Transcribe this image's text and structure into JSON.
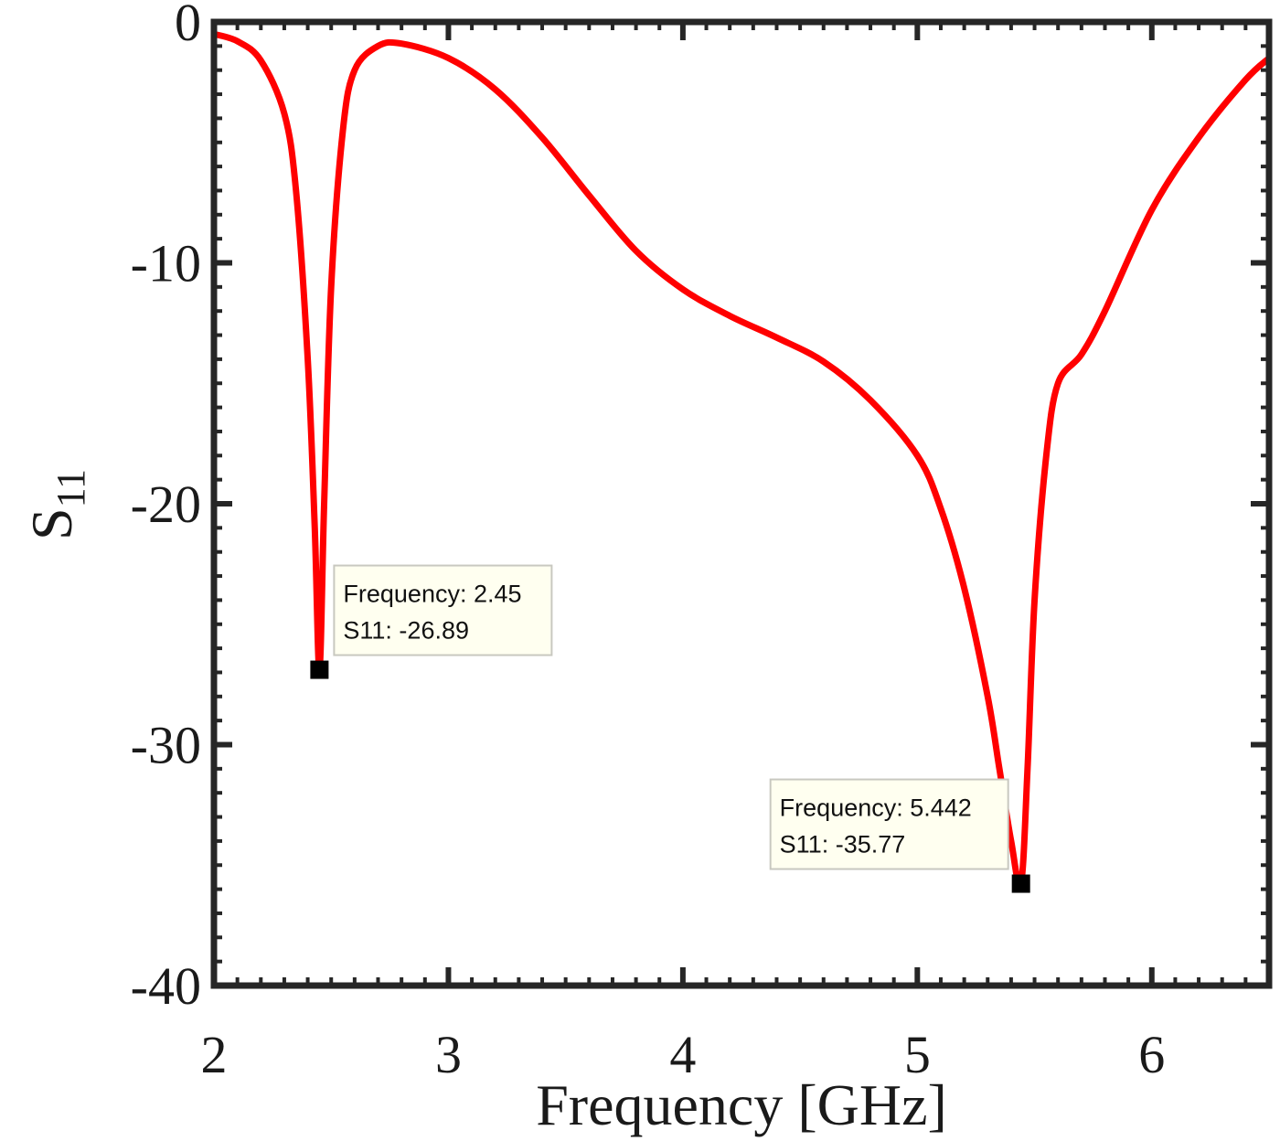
{
  "chart_data": {
    "type": "line",
    "xlabel": "Frequency [GHz]",
    "ylabel": "S",
    "ylabel_sub": "11",
    "xlim": [
      2,
      6.5
    ],
    "ylim": [
      -40,
      0
    ],
    "xticks": [
      2,
      3,
      4,
      5,
      6
    ],
    "yticks": [
      0,
      -10,
      -20,
      -30,
      -40
    ],
    "xtick_labels": [
      "2",
      "3",
      "4",
      "5",
      "6"
    ],
    "ytick_labels": [
      "0",
      "-10",
      "-20",
      "-30",
      "-40"
    ],
    "grid": false,
    "series": [
      {
        "name": "S11",
        "color": "#ff0000",
        "x": [
          2.0,
          2.1,
          2.2,
          2.3,
          2.35,
          2.4,
          2.43,
          2.45,
          2.47,
          2.5,
          2.55,
          2.6,
          2.7,
          2.8,
          3.0,
          3.2,
          3.4,
          3.6,
          3.8,
          4.0,
          4.2,
          4.4,
          4.6,
          4.8,
          5.0,
          5.1,
          5.2,
          5.3,
          5.35,
          5.4,
          5.442,
          5.47,
          5.5,
          5.55,
          5.6,
          5.7,
          5.8,
          6.0,
          6.2,
          6.4,
          6.5
        ],
        "y": [
          -0.5,
          -0.8,
          -1.6,
          -3.8,
          -7.0,
          -14.0,
          -21.0,
          -26.89,
          -20.0,
          -11.0,
          -4.5,
          -2.0,
          -1.0,
          -0.9,
          -1.5,
          -2.8,
          -4.8,
          -7.2,
          -9.5,
          -11.1,
          -12.2,
          -13.1,
          -14.1,
          -15.7,
          -18.0,
          -20.2,
          -23.5,
          -28.0,
          -31.0,
          -34.0,
          -35.77,
          -31.0,
          -24.0,
          -18.0,
          -15.0,
          -13.8,
          -12.0,
          -7.8,
          -4.8,
          -2.4,
          -1.5
        ]
      }
    ],
    "annotations": [
      {
        "x": 2.45,
        "y": -26.89,
        "line1": "Frequency: 2.45",
        "line2": "S11: -26.89",
        "placement": "upper-right"
      },
      {
        "x": 5.442,
        "y": -35.77,
        "line1": "Frequency: 5.442",
        "line2": "S11: -35.77",
        "placement": "upper-left"
      }
    ]
  }
}
